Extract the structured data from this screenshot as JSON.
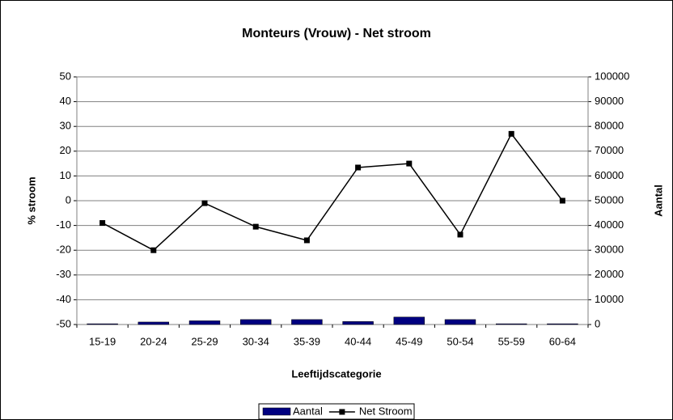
{
  "chart_data": {
    "type": "combo",
    "title": "Monteurs (Vrouw) - Net stroom",
    "x_label": "Leeftijdscategorie",
    "y_label": "% stroom",
    "y2_label": "Aantal",
    "categories": [
      "15-19",
      "20-24",
      "25-29",
      "30-34",
      "35-39",
      "40-44",
      "45-49",
      "50-54",
      "55-59",
      "60-64"
    ],
    "series": [
      {
        "name": "Aantal",
        "type": "bar",
        "axis": "y2",
        "color": "#000080",
        "values": [
          300,
          1000,
          1500,
          2000,
          2000,
          1200,
          3000,
          2000,
          300,
          300
        ]
      },
      {
        "name": "Net Stroom",
        "type": "line",
        "color": "#000000",
        "values": [
          -9,
          -20,
          -1,
          -10.5,
          -16,
          13.4,
          15,
          -13.7,
          27,
          0
        ]
      }
    ],
    "ylim": [
      -50,
      50
    ],
    "yticks": [
      -50,
      -40,
      -30,
      -20,
      -10,
      0,
      10,
      20,
      30,
      40,
      50
    ],
    "y2lim": [
      0,
      100000
    ],
    "y2ticks": [
      0,
      10000,
      20000,
      30000,
      40000,
      50000,
      60000,
      70000,
      80000,
      90000,
      100000
    ],
    "grid": true,
    "legend": "bottom"
  }
}
